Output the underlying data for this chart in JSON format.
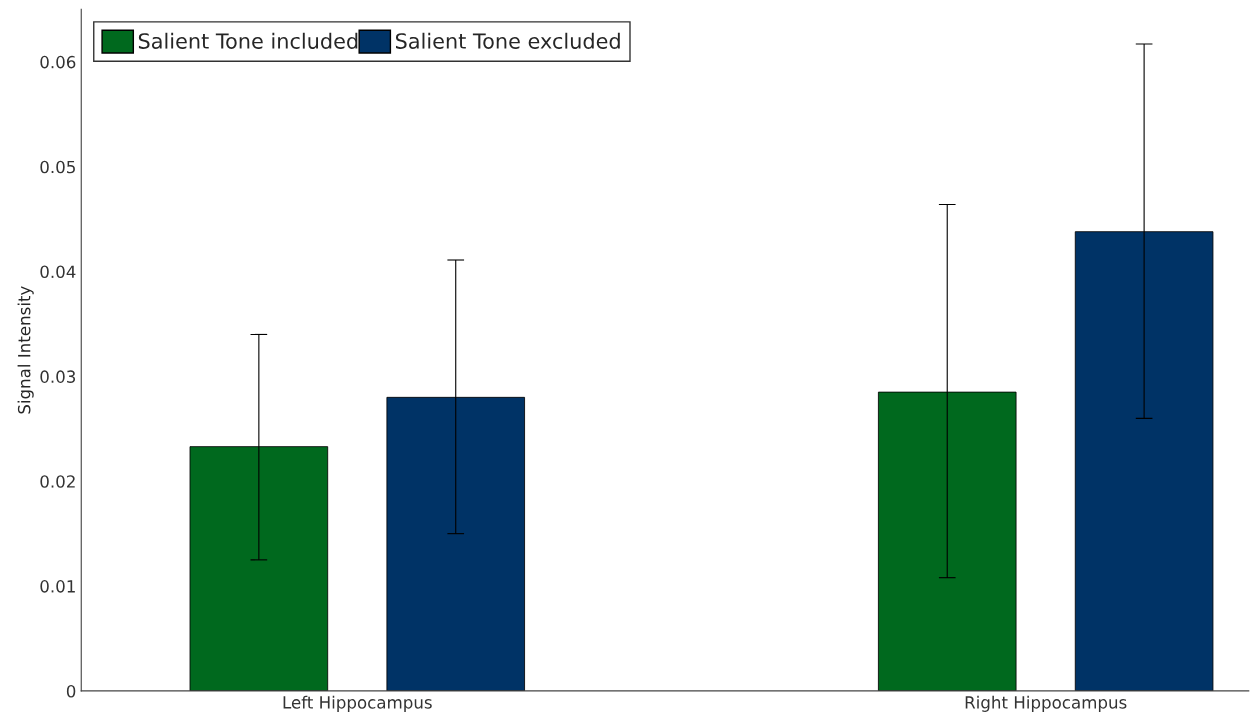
{
  "chart_data": {
    "type": "bar",
    "ylabel": "Signal Intensity",
    "categories": [
      "Left Hippocampus",
      "Right Hippocampus"
    ],
    "series": [
      {
        "name": "Salient Tone included",
        "color": "#00691e",
        "values": [
          0.0233,
          0.0285
        ],
        "errors": [
          [
            0.0125,
            0.034
          ],
          [
            0.0108,
            0.0464
          ]
        ]
      },
      {
        "name": "Salient Tone excluded",
        "color": "#003366",
        "values": [
          0.028,
          0.0438
        ],
        "errors": [
          [
            0.015,
            0.0411
          ],
          [
            0.026,
            0.0617
          ]
        ]
      }
    ],
    "ylim": [
      0,
      0.065
    ],
    "yticks": [
      0,
      0.01,
      0.02,
      0.03,
      0.04,
      0.05,
      0.06
    ],
    "grid": false,
    "legend": "top left"
  }
}
